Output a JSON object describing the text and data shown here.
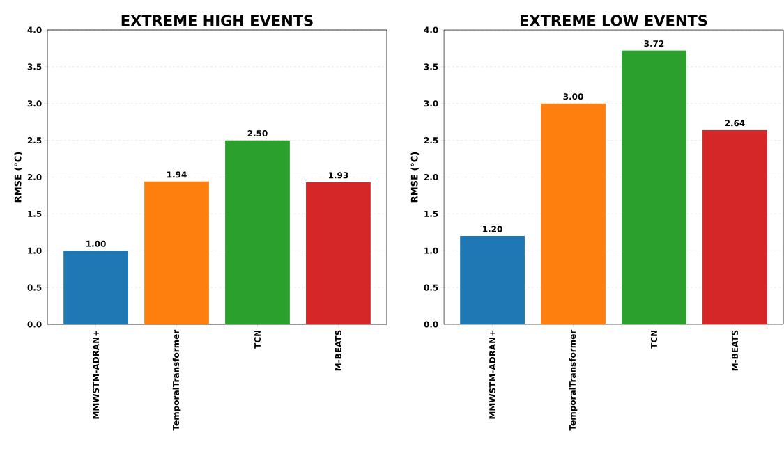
{
  "chart_data": [
    {
      "type": "bar",
      "title": "EXTREME HIGH EVENTS",
      "ylabel": "RMSE (°C)",
      "categories": [
        "MMWSTM-ADRAN+",
        "TemporalTransformer",
        "TCN",
        "M-BEATS"
      ],
      "values": [
        1.0,
        1.94,
        2.5,
        1.93
      ],
      "value_labels": [
        "1.00",
        "1.94",
        "2.50",
        "1.93"
      ],
      "colors": [
        "#1f77b4",
        "#ff7f0e",
        "#2ca02c",
        "#d62728"
      ],
      "ylim": [
        0,
        4
      ],
      "yticks": [
        {
          "value": 0,
          "label": "0.0"
        },
        {
          "value": 0.5,
          "label": "0.5"
        },
        {
          "value": 1,
          "label": "1.0"
        },
        {
          "value": 1.5,
          "label": "1.5"
        },
        {
          "value": 2,
          "label": "2.0"
        },
        {
          "value": 2.5,
          "label": "2.5"
        },
        {
          "value": 3,
          "label": "3.0"
        },
        {
          "value": 3.5,
          "label": "3.5"
        },
        {
          "value": 4,
          "label": "4.0"
        }
      ],
      "grid": "y"
    },
    {
      "type": "bar",
      "title": "EXTREME LOW EVENTS",
      "ylabel": "RMSE (°C)",
      "categories": [
        "MMWSTM-ADRAN+",
        "TemporalTransformer",
        "TCN",
        "M-BEATS"
      ],
      "values": [
        1.2,
        3.0,
        3.72,
        2.64
      ],
      "value_labels": [
        "1.20",
        "3.00",
        "3.72",
        "2.64"
      ],
      "colors": [
        "#1f77b4",
        "#ff7f0e",
        "#2ca02c",
        "#d62728"
      ],
      "ylim": [
        0,
        4
      ],
      "yticks": [
        {
          "value": 0,
          "label": "0.0"
        },
        {
          "value": 0.5,
          "label": "0.5"
        },
        {
          "value": 1,
          "label": "1.0"
        },
        {
          "value": 1.5,
          "label": "1.5"
        },
        {
          "value": 2,
          "label": "2.0"
        },
        {
          "value": 2.5,
          "label": "2.5"
        },
        {
          "value": 3,
          "label": "3.0"
        },
        {
          "value": 3.5,
          "label": "3.5"
        },
        {
          "value": 4,
          "label": "4.0"
        }
      ],
      "grid": "y"
    }
  ]
}
